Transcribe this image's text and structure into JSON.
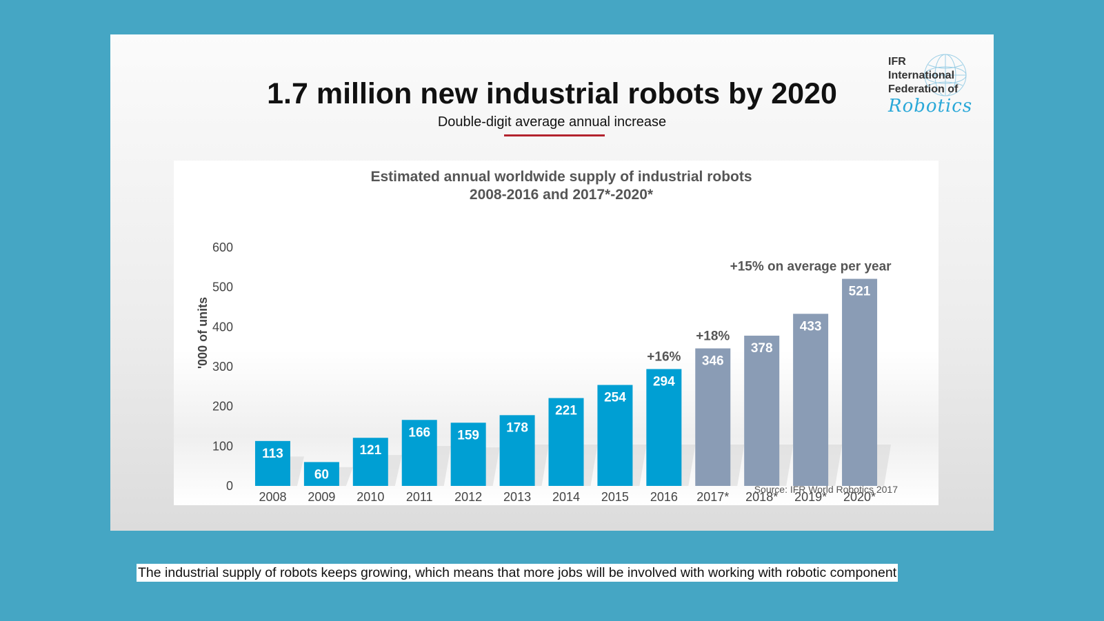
{
  "slide": {
    "title": "1.7 million new industrial robots by 2020",
    "subtitle": "Double-digit average annual increase",
    "accent_color": "#b3232e"
  },
  "logo": {
    "lines": [
      "IFR",
      "International",
      "Federation of"
    ],
    "script": "Robotics"
  },
  "caption": "The industrial supply of robots keeps growing, which means that more jobs will be involved with working with robotic component",
  "chart_data": {
    "type": "bar",
    "title": "Estimated  annual  worldwide supply  of industrial  robots",
    "subtitle": "2008-2016  and  2017*-2020*",
    "ylabel": "'000 of units",
    "xlabel": "",
    "ylim": [
      0,
      600
    ],
    "yticks": [
      0,
      100,
      200,
      300,
      400,
      500,
      600
    ],
    "categories": [
      "2008",
      "2009",
      "2010",
      "2011",
      "2012",
      "2013",
      "2014",
      "2015",
      "2016",
      "2017*",
      "2018*",
      "2019*",
      "2020*"
    ],
    "values": [
      113,
      60,
      121,
      166,
      159,
      178,
      221,
      254,
      294,
      346,
      378,
      433,
      521
    ],
    "bar_colors": {
      "actual": "#009fd3",
      "forecast": "#8a9cb5"
    },
    "forecast_from_index": 9,
    "annotations": [
      {
        "text": "+16%",
        "category": "2016"
      },
      {
        "text": "+18%",
        "category": "2017*"
      },
      {
        "text": "+15% on average per year",
        "category": "2019*"
      }
    ],
    "source": "Source: IFR World Robotics 2017",
    "grid": false,
    "legend": "none"
  }
}
